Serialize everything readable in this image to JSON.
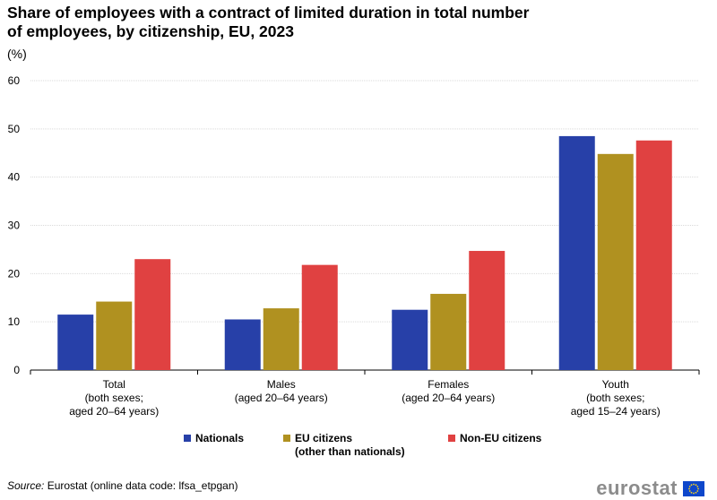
{
  "title": "Share of employees with a contract of limited duration in total number of employees, by citizenship,  EU, 2023",
  "unit": "(%)",
  "chart_data": {
    "type": "bar",
    "categories": [
      [
        "Total",
        "(both sexes;",
        "aged 20–64 years)"
      ],
      [
        "Males",
        "(aged 20–64 years)"
      ],
      [
        "Females",
        "(aged 20–64 years)"
      ],
      [
        "Youth",
        "(both sexes;",
        "aged 15–24 years)"
      ]
    ],
    "series": [
      {
        "name": "Nationals",
        "color": "#2740a8",
        "values": [
          11.5,
          10.5,
          12.5,
          48.5
        ]
      },
      {
        "name": "EU citizens (other than nationals)",
        "color": "#b09120",
        "values": [
          14.2,
          12.8,
          15.8,
          44.8
        ]
      },
      {
        "name": "Non-EU citizens",
        "color": "#e04141",
        "values": [
          23.0,
          21.8,
          24.7,
          47.6
        ]
      }
    ],
    "ylim": [
      0,
      60
    ],
    "yticks": [
      0,
      10,
      20,
      30,
      40,
      50,
      60
    ],
    "xlabel": "",
    "ylabel": "%",
    "legend_position": "bottom"
  },
  "legend": [
    {
      "lines": [
        "Nationals"
      ],
      "color": "#2740a8"
    },
    {
      "lines": [
        "EU citizens",
        "(other than nationals)"
      ],
      "color": "#b09120"
    },
    {
      "lines": [
        "Non-EU citizens"
      ],
      "color": "#e04141"
    }
  ],
  "source": {
    "label": "Source:",
    "text": " Eurostat (online data code: lfsa_etpgan)"
  },
  "logo": {
    "text": "eurostat",
    "flag_color": "#0e47cb"
  }
}
